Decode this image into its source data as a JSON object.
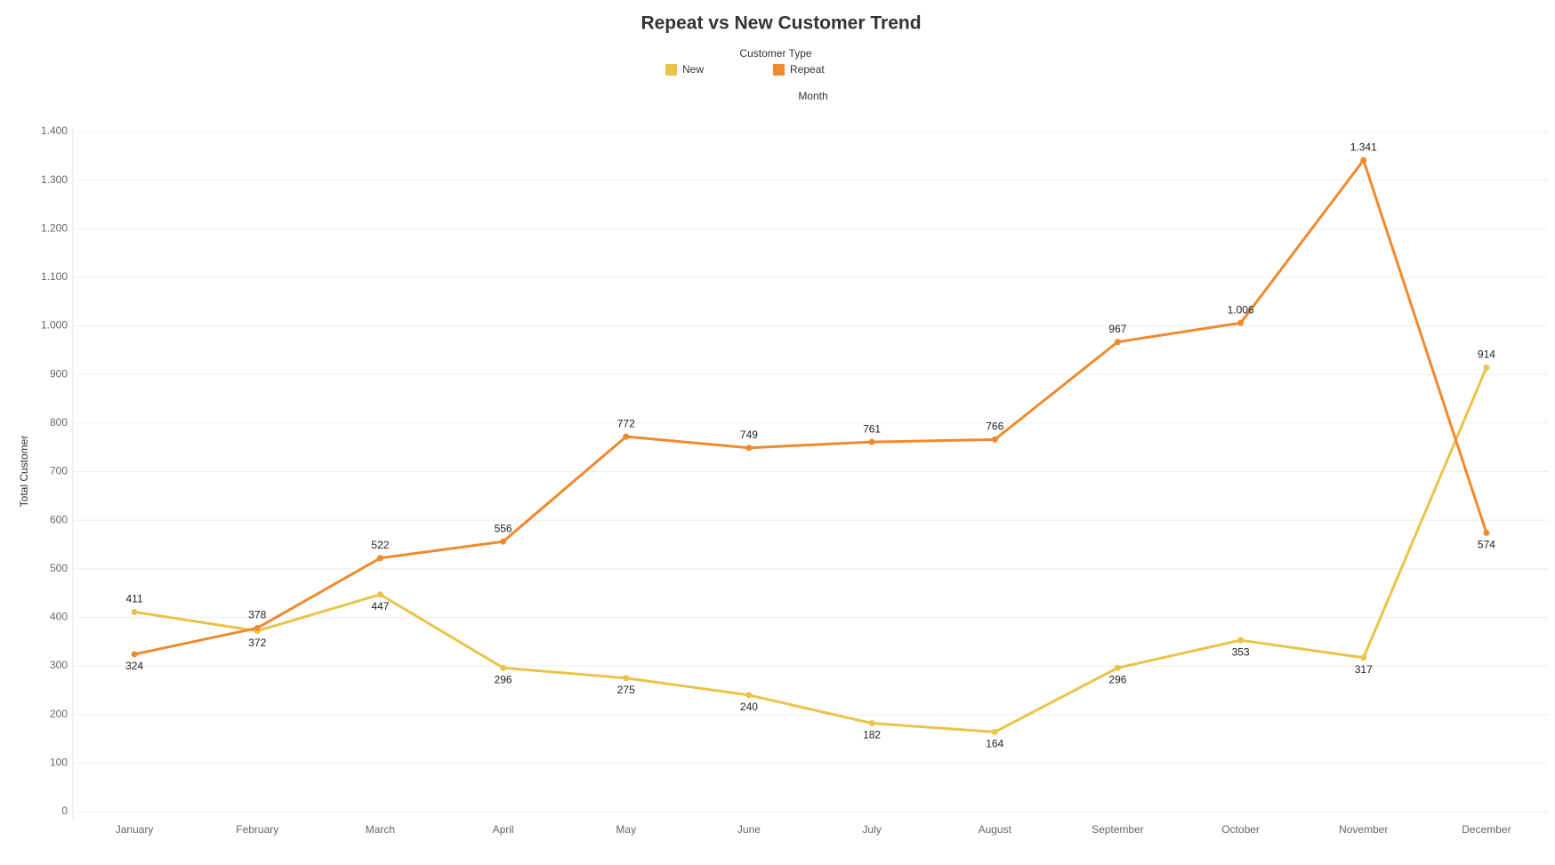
{
  "chart_data": {
    "type": "line",
    "title": "Repeat vs New Customer Trend",
    "legend_title": "Customer Type",
    "x_label": "Month",
    "y_label": "Total Customer",
    "categories": [
      "January",
      "February",
      "March",
      "April",
      "May",
      "June",
      "July",
      "August",
      "September",
      "October",
      "November",
      "December"
    ],
    "series": [
      {
        "name": "New",
        "color": "#e9c44a",
        "values": [
          411,
          372,
          447,
          296,
          275,
          240,
          182,
          164,
          296,
          353,
          317,
          914
        ]
      },
      {
        "name": "Repeat",
        "color": "#ef8a2e",
        "values": [
          324,
          378,
          522,
          556,
          772,
          749,
          761,
          766,
          967,
          1006,
          1341,
          574
        ],
        "value_labels": [
          "324",
          "378",
          "522",
          "556",
          "772",
          "749",
          "761",
          "766",
          "967",
          "1.006",
          "1.341",
          "574"
        ]
      }
    ],
    "ylim": [
      0,
      1400
    ],
    "yticks": [
      0,
      100,
      200,
      300,
      400,
      500,
      600,
      700,
      800,
      900,
      {
        "value": 1000,
        "label": "1.000"
      },
      {
        "value": 1100,
        "label": "1.100"
      },
      {
        "value": 1200,
        "label": "1.200"
      },
      {
        "value": 1300,
        "label": "1.300"
      },
      {
        "value": 1400,
        "label": "1.400"
      }
    ],
    "grid": true
  }
}
